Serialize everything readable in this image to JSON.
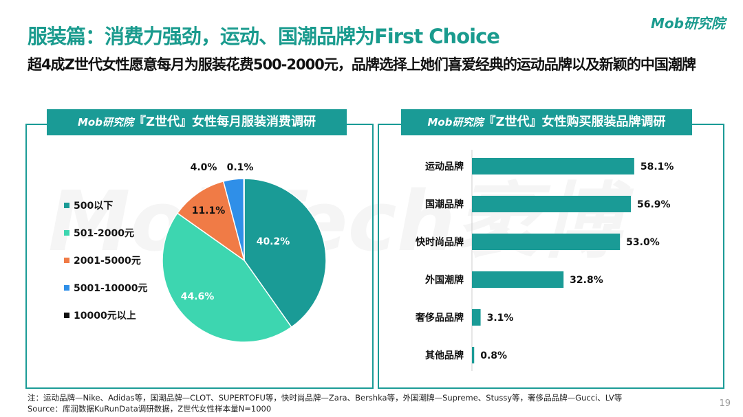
{
  "header": {
    "title": "服装篇：消费力强劲，运动、国潮品牌为First Choice",
    "subtitle": "超4成Z世代女性愿意每月为服装花费500-2000元，品牌选择上她们喜爱经典的运动品牌以及新颖的中国潮牌",
    "logo": "Mob研究院"
  },
  "watermark": "MobTech袤博",
  "chart_data": [
    {
      "type": "pie",
      "title_brand": "Mob研究院",
      "title": "『Z世代』女性每月服装消费调研",
      "legend_position": "left",
      "categories": [
        "500以下",
        "501-2000元",
        "2001-5000元",
        "5001-10000元",
        "10000元以上"
      ],
      "values": [
        40.2,
        44.6,
        11.1,
        4.0,
        0.1
      ],
      "labels": [
        "40.2%",
        "44.6%",
        "11.1%",
        "4.0%",
        "0.1%"
      ],
      "colors": [
        "#1a9b96",
        "#3dd6b0",
        "#f07b46",
        "#2f8fe8",
        "#111111"
      ]
    },
    {
      "type": "bar",
      "orientation": "horizontal",
      "title_brand": "Mob研究院",
      "title": "『Z世代』女性购买服装品牌调研",
      "categories": [
        "运动品牌",
        "国潮品牌",
        "快时尚品牌",
        "外国潮牌",
        "奢侈品品牌",
        "其他品牌"
      ],
      "values": [
        58.1,
        56.9,
        53.0,
        32.8,
        3.1,
        0.8
      ],
      "labels": [
        "58.1%",
        "56.9%",
        "53.0%",
        "32.8%",
        "3.1%",
        "0.8%"
      ],
      "color": "#1a9b96"
    }
  ],
  "footer": {
    "note": "注：运动品牌—Nike、Adidas等，国潮品牌—CLOT、SUPERTOFU等，快时尚品牌—Zara、Bershka等，外国潮牌—Supreme、Stussy等，奢侈品品牌—Gucci、LV等",
    "source": "Source：库润数据KuRunData调研数据，Z世代女性样本量N=1000",
    "page": "19"
  }
}
